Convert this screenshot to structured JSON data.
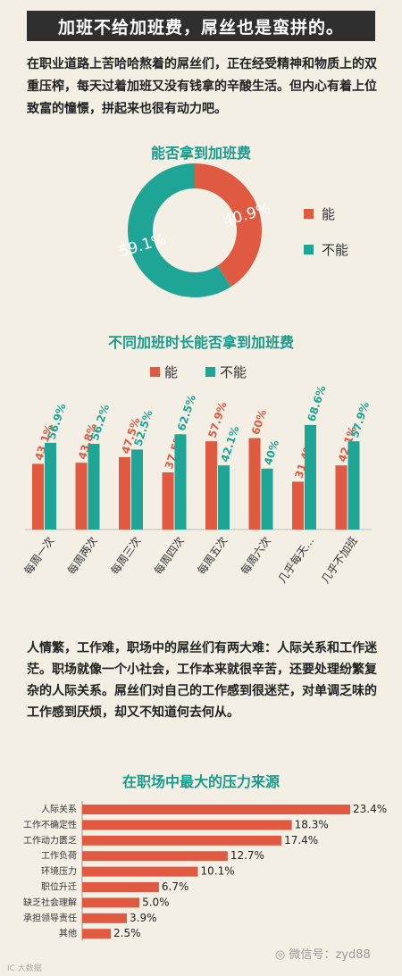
{
  "header": {
    "title": "加班不给加班费，屌丝也是蛮拼的。"
  },
  "intro_text": "在职业道路上苦哈哈熬着的屌丝们，正在经受精神和物质上的双重压榨，每天过着加班又没有钱拿的辛酸生活。但内心有着上位致富的憧憬，拼起来也很有动力吧。",
  "paragraph2": "人情繁，工作难，职场中的屌丝们有两大难：人际关系和工作迷茫。职场就像一个小社会，工作本来就很辛苦，还要处理纷繁复杂的人际关系。屌丝们对自己的工作感到很迷茫，对单调乏味的工作感到厌烦，却又不知道何去何从。",
  "colors": {
    "yes": "#e05a42",
    "no": "#1ea595",
    "bar": "#e05a42",
    "title": "#1a9b8c"
  },
  "chart_data": [
    {
      "type": "pie",
      "title": "能否拿到加班费",
      "labels": [
        "能",
        "不能"
      ],
      "values": [
        40.9,
        59.1
      ],
      "value_labels": [
        "40.9%",
        "59.1%"
      ],
      "legend": [
        "能",
        "不能"
      ],
      "legend_position": "right"
    },
    {
      "type": "bar",
      "title": "不同加班时长能否拿到加班费",
      "legend": [
        "能",
        "不能"
      ],
      "legend_position": "top",
      "categories": [
        "每周一次",
        "每周两次",
        "每周三次",
        "每周四次",
        "每周五次",
        "每周六次",
        "几乎每天...",
        "几乎不加班"
      ],
      "series": [
        {
          "name": "能",
          "values": [
            43.1,
            43.8,
            47.5,
            37.5,
            57.9,
            60,
            31.4,
            42.1
          ],
          "labels": [
            "43.1%",
            "43.8%",
            "47.5%",
            "37.5%",
            "57.9%",
            "60%",
            "31.4%",
            "42.1%"
          ]
        },
        {
          "name": "不能",
          "values": [
            56.9,
            56.2,
            52.5,
            62.5,
            42.1,
            40,
            68.6,
            57.9
          ],
          "labels": [
            "56.9%",
            "56.2%",
            "52.5%",
            "62.5%",
            "42.1%",
            "40%",
            "68.6%",
            "57.9%"
          ]
        }
      ],
      "ylim": [
        0,
        75
      ],
      "grid": false
    },
    {
      "type": "bar",
      "orientation": "horizontal",
      "title": "在职场中最大的压力来源",
      "categories": [
        "人际关系",
        "工作不确定性",
        "工作动力匮乏",
        "工作负荷",
        "环境压力",
        "职位升迁",
        "缺乏社会理解",
        "承担领导责任",
        "其他"
      ],
      "values": [
        23.4,
        18.3,
        17.4,
        12.7,
        10.1,
        6.7,
        5.0,
        3.9,
        2.5
      ],
      "value_labels": [
        "23.4%",
        "18.3%",
        "17.4%",
        "12.7%",
        "10.1%",
        "6.7%",
        "5.0%",
        "3.9%",
        "2.5%"
      ],
      "xlim": [
        0,
        25
      ],
      "grid": false
    }
  ],
  "watermark": "微信号：zyd88",
  "corner_logo": "IC 大数据"
}
